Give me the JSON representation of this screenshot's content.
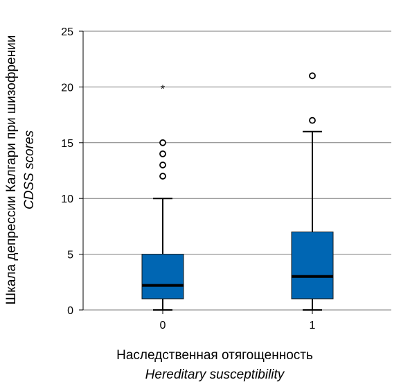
{
  "chart_data": {
    "type": "box",
    "categories": [
      "0",
      "1"
    ],
    "xlabel": "Наследственная отягощенность",
    "xlabel_en": "Hereditary susceptibility",
    "ylabel": "Шкала депрессии Калгари при шизофрении",
    "ylabel_en": "CDSS scores",
    "ylim": [
      0,
      25
    ],
    "yticks": [
      0,
      5,
      10,
      15,
      20,
      25
    ],
    "grid": true,
    "box_color": "#0066b3",
    "series": [
      {
        "category": "0",
        "whisker_low": 0,
        "q1": 1,
        "median": 2.2,
        "q3": 5,
        "whisker_high": 10,
        "outliers": [
          12,
          13,
          14,
          15
        ],
        "extremes": [
          20
        ]
      },
      {
        "category": "1",
        "whisker_low": 0,
        "q1": 1,
        "median": 3,
        "q3": 7,
        "whisker_high": 16,
        "outliers": [
          17,
          21
        ],
        "extremes": []
      }
    ]
  }
}
